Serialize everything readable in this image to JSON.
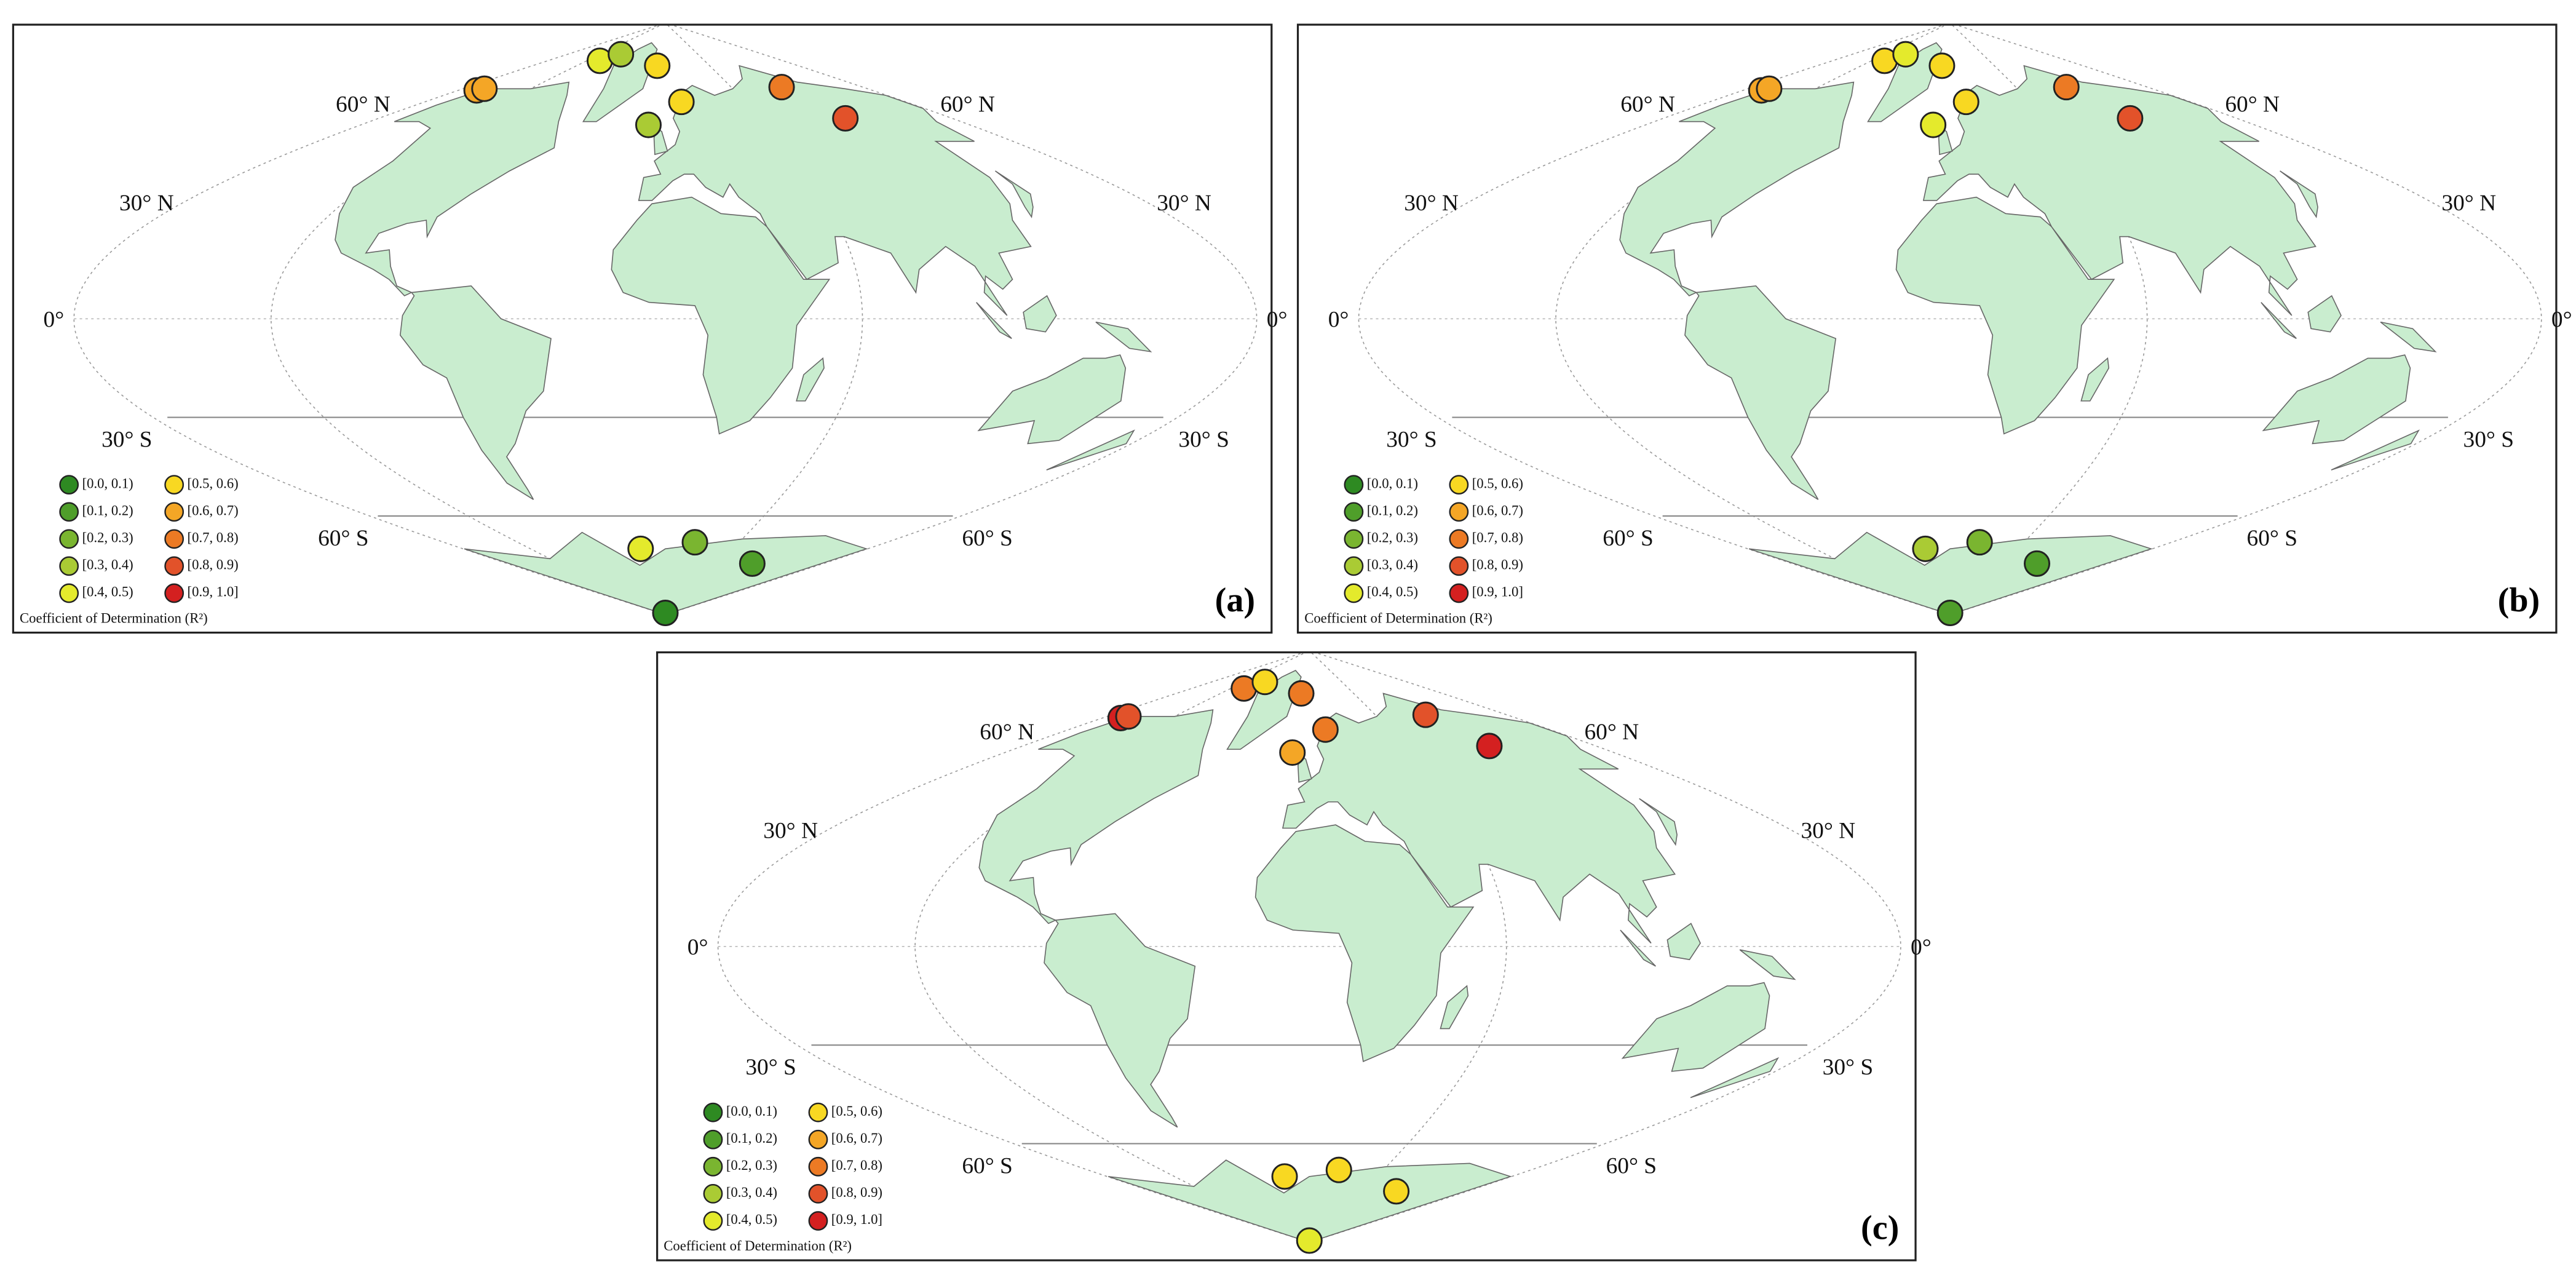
{
  "legend": {
    "title": "Coefficient of Determination (R²)",
    "bins": [
      0,
      0.1,
      0.2,
      0.3,
      0.4,
      0.5,
      0.6,
      0.7,
      0.8,
      0.9,
      1.0
    ],
    "classes": [
      {
        "label": "[0.0, 0.1)",
        "color": "#2e8a22"
      },
      {
        "label": "[0.1, 0.2)",
        "color": "#4f9e2a"
      },
      {
        "label": "[0.2, 0.3)",
        "color": "#7ab530"
      },
      {
        "label": "[0.3, 0.4)",
        "color": "#aacb34"
      },
      {
        "label": "[0.4, 0.5)",
        "color": "#e4ea2c"
      },
      {
        "label": "[0.5, 0.6)",
        "color": "#f8d822"
      },
      {
        "label": "[0.6, 0.7)",
        "color": "#f4a626"
      },
      {
        "label": "[0.7, 0.8)",
        "color": "#ec7a24"
      },
      {
        "label": "[0.8, 0.9)",
        "color": "#e2522a"
      },
      {
        "label": "[0.9, 1.0]",
        "color": "#d42020"
      }
    ]
  },
  "graticule_labels": [
    {
      "label": "60° N",
      "lat": 60
    },
    {
      "label": "30° N",
      "lat": 30
    },
    {
      "label": "0°",
      "lat": 0
    },
    {
      "label": "30° S",
      "lat": -30
    },
    {
      "label": "60° S",
      "lat": -60
    }
  ],
  "stations": [
    {
      "lon": -164,
      "lat": 69.5
    },
    {
      "lon": -161,
      "lat": 70
    },
    {
      "lon": -100,
      "lat": 78.5
    },
    {
      "lon": -82,
      "lat": 80.5
    },
    {
      "lon": -11,
      "lat": 77
    },
    {
      "lon": 12,
      "lat": 66
    },
    {
      "lon": -10,
      "lat": 59
    },
    {
      "lon": 106,
      "lat": 70.5
    },
    {
      "lon": 113,
      "lat": 61
    },
    {
      "lon": -22,
      "lat": -70
    },
    {
      "lon": 24,
      "lat": -68
    },
    {
      "lon": 99,
      "lat": -74.5
    },
    {
      "lon": 0,
      "lat": -89.5
    }
  ],
  "panels": [
    {
      "label": "(a)",
      "r2": [
        0.65,
        0.65,
        0.45,
        0.35,
        0.55,
        0.55,
        0.35,
        0.75,
        0.85,
        0.45,
        0.25,
        0.15,
        0.05
      ]
    },
    {
      "label": "(b)",
      "r2": [
        0.65,
        0.65,
        0.55,
        0.45,
        0.55,
        0.55,
        0.45,
        0.75,
        0.85,
        0.35,
        0.25,
        0.15,
        0.15
      ]
    },
    {
      "label": "(c)",
      "r2": [
        0.95,
        0.85,
        0.75,
        0.55,
        0.75,
        0.75,
        0.65,
        0.85,
        0.95,
        0.55,
        0.55,
        0.55,
        0.45
      ]
    }
  ]
}
